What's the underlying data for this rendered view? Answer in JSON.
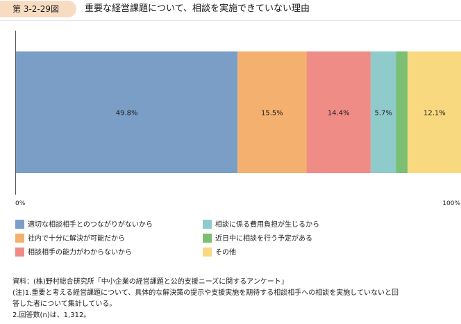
{
  "figure": {
    "number": "第 3-2-29図",
    "title": "重要な経営課題について、相談を実施できていない理由"
  },
  "chart_data": {
    "type": "bar",
    "orientation": "horizontal-stacked-100",
    "categories": [
      ""
    ],
    "series": [
      {
        "name": "適切な相談相手とのつながりがないから",
        "value": 49.8,
        "label": "49.8%",
        "color": "#7b9ec7"
      },
      {
        "name": "社内で十分に解決が可能だから",
        "value": 15.5,
        "label": "15.5%",
        "color": "#f4b06e"
      },
      {
        "name": "相談相手の能力がわからないから",
        "value": 14.4,
        "label": "14.4%",
        "color": "#ef8c86"
      },
      {
        "name": "相談に係る費用負担が生じるから",
        "value": 5.7,
        "label": "5.7%",
        "color": "#8ecbca"
      },
      {
        "name": "近日中に相談を行う予定がある",
        "value": 2.6,
        "label": "",
        "color": "#7bbf72"
      },
      {
        "name": "その他",
        "value": 12.1,
        "label": "12.1%",
        "color": "#f9d97f"
      }
    ],
    "xlim": [
      0,
      100
    ],
    "x_tick_labels": [
      "0%",
      "100%"
    ],
    "legend_position": "bottom-left"
  },
  "notes": {
    "source": "資料：(株)野村総合研究所「中小企業の経営課題と公的支援ニーズに関するアンケート」",
    "note1_line1": "(注)1.重要と考える経営課題について、具体的な解決策の提示や支援実施を期待する相談相手への相談を実施していないと回",
    "note1_line2": "答した者について集計している。",
    "note2": "2.回答数(n)は、1,312。"
  }
}
